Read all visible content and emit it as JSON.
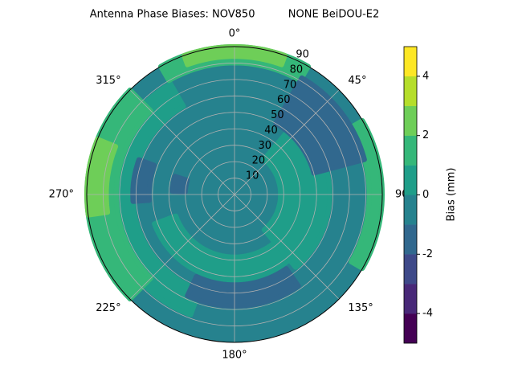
{
  "chart_data": {
    "type": "polar-contour",
    "title": "Antenna Phase Biases: NOV850          NONE BeiDOU-E2",
    "rlim": [
      0,
      90
    ],
    "rticks": [
      10,
      20,
      30,
      40,
      50,
      60,
      70,
      80,
      90
    ],
    "thetaticks": [
      {
        "value": 0,
        "label": "0°"
      },
      {
        "value": 45,
        "label": "45°"
      },
      {
        "value": 90,
        "label": "90"
      },
      {
        "value": 135,
        "label": "135°"
      },
      {
        "value": 180,
        "label": "180°"
      },
      {
        "value": 225,
        "label": "225°"
      },
      {
        "value": 270,
        "label": "270°"
      },
      {
        "value": 315,
        "label": "315°"
      }
    ],
    "grid": true,
    "levels": [
      -5,
      -4,
      -3,
      -2,
      -1,
      0,
      1,
      2,
      3,
      4,
      5
    ],
    "colors": [
      "#440154",
      "#482878",
      "#3e4989",
      "#31688e",
      "#26828e",
      "#1f9e89",
      "#35b779",
      "#6ece58",
      "#b5de2b",
      "#fde725"
    ],
    "colorbar_label": "Bias (mm)",
    "colorbar_ticks": [
      -4,
      -2,
      0,
      2,
      4
    ],
    "background_level": -1,
    "regions": [
      {
        "level": 0,
        "theta": [
          40,
          140
        ],
        "r": [
          28,
          58
        ]
      },
      {
        "level": 0,
        "theta": [
          140,
          250
        ],
        "r": [
          38,
          52
        ]
      },
      {
        "level": 0,
        "theta": [
          200,
          330
        ],
        "r": [
          62,
          78
        ]
      },
      {
        "level": 1,
        "theta": [
          225,
          315
        ],
        "r": [
          72,
          90
        ]
      },
      {
        "level": 1,
        "theta": [
          -30,
          30
        ],
        "r": [
          80,
          90
        ]
      },
      {
        "level": 1,
        "theta": [
          60,
          120
        ],
        "r": [
          82,
          90
        ]
      },
      {
        "level": 2,
        "theta": [
          262,
          292
        ],
        "r": [
          78,
          90
        ]
      },
      {
        "level": 2,
        "theta": [
          -20,
          20
        ],
        "r": [
          84,
          90
        ]
      },
      {
        "level": -2,
        "theta": [
          30,
          75
        ],
        "r": [
          50,
          82
        ]
      },
      {
        "level": -2,
        "theta": [
          145,
          205
        ],
        "r": [
          55,
          68
        ]
      },
      {
        "level": -2,
        "theta": [
          266,
          290
        ],
        "r": [
          52,
          62
        ]
      },
      {
        "level": -2,
        "theta": [
          273,
          287
        ],
        "r": [
          30,
          38
        ]
      }
    ]
  }
}
